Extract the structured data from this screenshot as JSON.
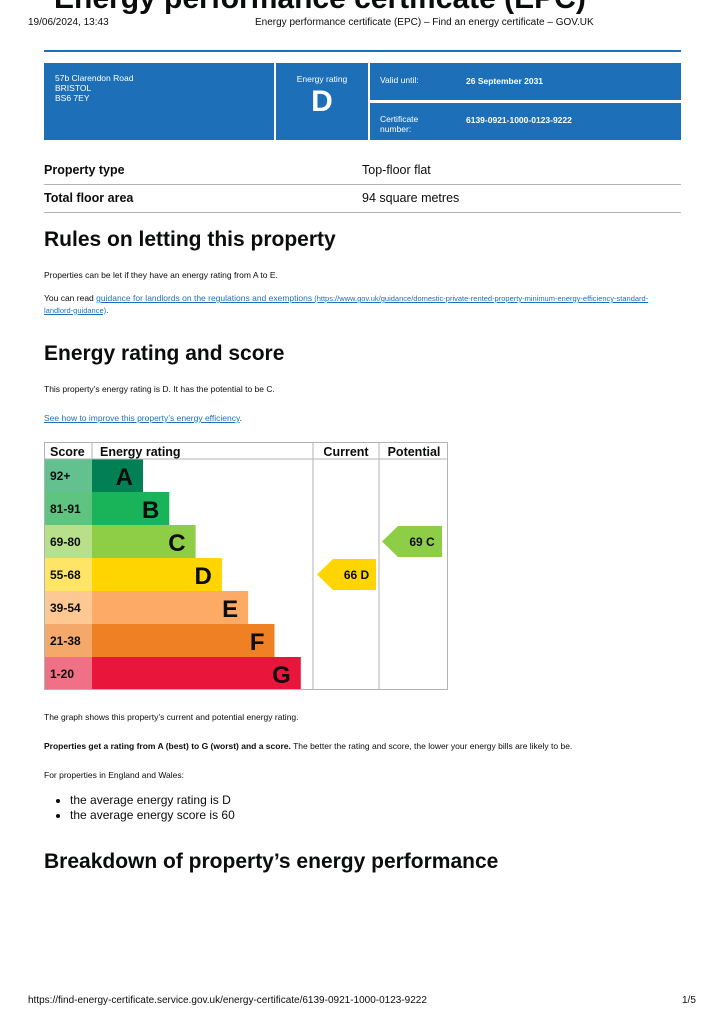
{
  "print_header": {
    "datetime": "19/06/2024, 13:43",
    "page_title": "Energy performance certificate (EPC) – Find an energy certificate – GOV.UK"
  },
  "title": "Energy performance certificate (EPC)",
  "summary": {
    "address_lines": [
      "57b Clarendon Road",
      "BRISTOL",
      "BS6 7EY"
    ],
    "rating_label": "Energy rating",
    "rating_value": "D",
    "valid_until_label": "Valid until:",
    "valid_until_value": "26 September 2031",
    "certificate_label_line1": "Certificate",
    "certificate_label_line2": "number:",
    "certificate_value": "6139-0921-1000-0123-9222"
  },
  "property": [
    {
      "label": "Property type",
      "value": "Top-floor flat"
    },
    {
      "label": "Total floor area",
      "value": "94 square metres"
    }
  ],
  "letting": {
    "heading": "Rules on letting this property",
    "para1": "Properties can be let if they have an energy rating from A to E.",
    "para2_prefix": "You can read ",
    "para2_link": "guidance for landlords on the regulations and exemptions",
    "para2_url_line1": " (https://www.gov.uk/guidance/domestic-private-rented-property-minimum-energy-efficiency-standard-",
    "para2_url_line2": "landlord-guidance)",
    "para2_suffix": "."
  },
  "energy": {
    "heading": "Energy rating and score",
    "para1": "This property’s energy rating is D. It has the potential to be C.",
    "improve_link": "See how to improve this property’s energy efficiency",
    "improve_suffix": ".",
    "graph_note": "The graph shows this property’s current and potential energy rating.",
    "bold_text": "Properties get a rating from A (best) to G (worst) and a score.",
    "rest_text": " The better the rating and score, the lower your energy bills are likely to be.",
    "england_wales": "For properties in England and Wales:",
    "bullets": [
      "the average energy rating is D",
      "the average energy score is 60"
    ]
  },
  "chart_data": {
    "type": "table",
    "columns": [
      "Score",
      "Energy rating",
      "Current",
      "Potential"
    ],
    "bands": [
      {
        "score": "92+",
        "letter": "A",
        "color": "#008054",
        "score_bg": "#63c08f"
      },
      {
        "score": "81-91",
        "letter": "B",
        "color": "#19b459",
        "score_bg": "#5ec47f"
      },
      {
        "score": "69-80",
        "letter": "C",
        "color": "#8dce46",
        "score_bg": "#b8df8a"
      },
      {
        "score": "55-68",
        "letter": "D",
        "color": "#ffd500",
        "score_bg": "#ffe566"
      },
      {
        "score": "39-54",
        "letter": "E",
        "color": "#fcaa65",
        "score_bg": "#fdc893"
      },
      {
        "score": "21-38",
        "letter": "F",
        "color": "#ef8023",
        "score_bg": "#f4a86a"
      },
      {
        "score": "1-20",
        "letter": "G",
        "color": "#e9153b",
        "score_bg": "#f07086"
      }
    ],
    "current": {
      "score": 66,
      "letter": "D",
      "label": "66  D",
      "color": "#ffd500"
    },
    "potential": {
      "score": 69,
      "letter": "C",
      "label": "69  C",
      "color": "#8dce46"
    }
  },
  "breakdown_heading": "Breakdown of property’s energy performance",
  "footer": {
    "url": "https://find-energy-certificate.service.gov.uk/energy-certificate/6139-0921-1000-0123-9222",
    "page": "1/5"
  }
}
